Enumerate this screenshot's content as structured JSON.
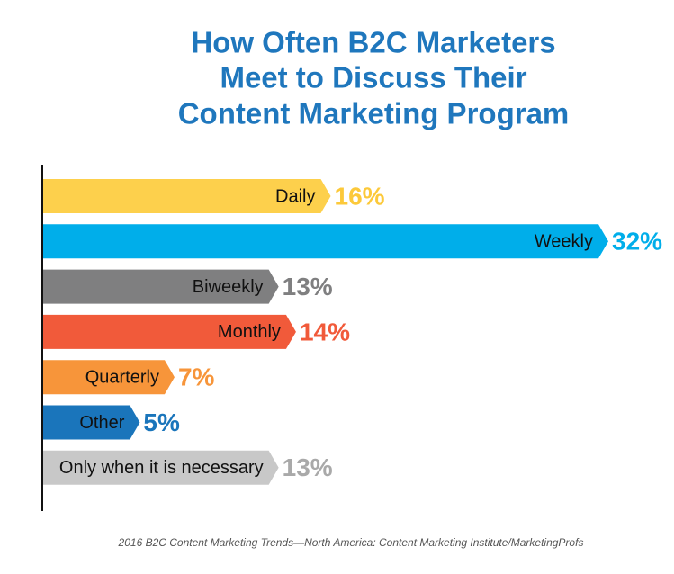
{
  "chart_data": {
    "type": "bar",
    "orientation": "horizontal",
    "title": [
      "How Often B2C Marketers",
      "Meet to Discuss Their",
      "Content Marketing Program"
    ],
    "categories": [
      "Daily",
      "Weekly",
      "Biweekly",
      "Monthly",
      "Quarterly",
      "Other",
      "Only when it is necessary"
    ],
    "values": [
      16,
      32,
      13,
      14,
      7,
      5,
      13
    ],
    "value_labels": [
      "16%",
      "32%",
      "13%",
      "14%",
      "7%",
      "5%",
      "13%"
    ],
    "colors": [
      "#fdd04c",
      "#00aeea",
      "#7f7f80",
      "#f15a3a",
      "#f7953a",
      "#1a75bb",
      "#c8c8c8"
    ],
    "source": "2016 B2C Content Marketing Trends—North America: Content Marketing Institute/MarketingProfs"
  }
}
